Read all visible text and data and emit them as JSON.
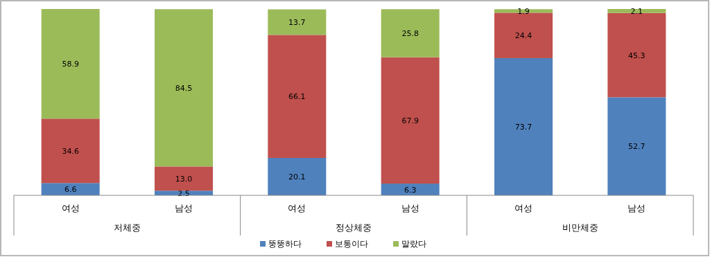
{
  "chart_data": {
    "type": "bar",
    "stacked": true,
    "data_labels": true,
    "legend": "bottom",
    "categories": [
      "여성",
      "남성",
      "여성",
      "남성",
      "여성",
      "남성"
    ],
    "annotations": [
      "저체중",
      "정상체중",
      "비만체중"
    ],
    "series": [
      {
        "name": "뚱뚱하다",
        "color": "#4f81bd",
        "values": [
          6.6,
          2.5,
          20.1,
          6.3,
          73.7,
          52.7
        ],
        "value_labels": [
          "6.6",
          "2.5",
          "20.1",
          "6.3",
          "73.7",
          "52.7"
        ]
      },
      {
        "name": "보통이다",
        "color": "#c0504d",
        "values": [
          34.6,
          13.0,
          66.1,
          67.9,
          24.4,
          45.3
        ],
        "value_labels": [
          "34.6",
          "13.0",
          "66.1",
          "67.9",
          "24.4",
          "45.3"
        ]
      },
      {
        "name": "말랐다",
        "color": "#9bbb59",
        "values": [
          58.9,
          84.5,
          13.7,
          25.8,
          1.9,
          2.1
        ],
        "value_labels": [
          "58.9",
          "84.5",
          "13.7",
          "25.8",
          "1.9",
          "2.1"
        ]
      }
    ]
  }
}
